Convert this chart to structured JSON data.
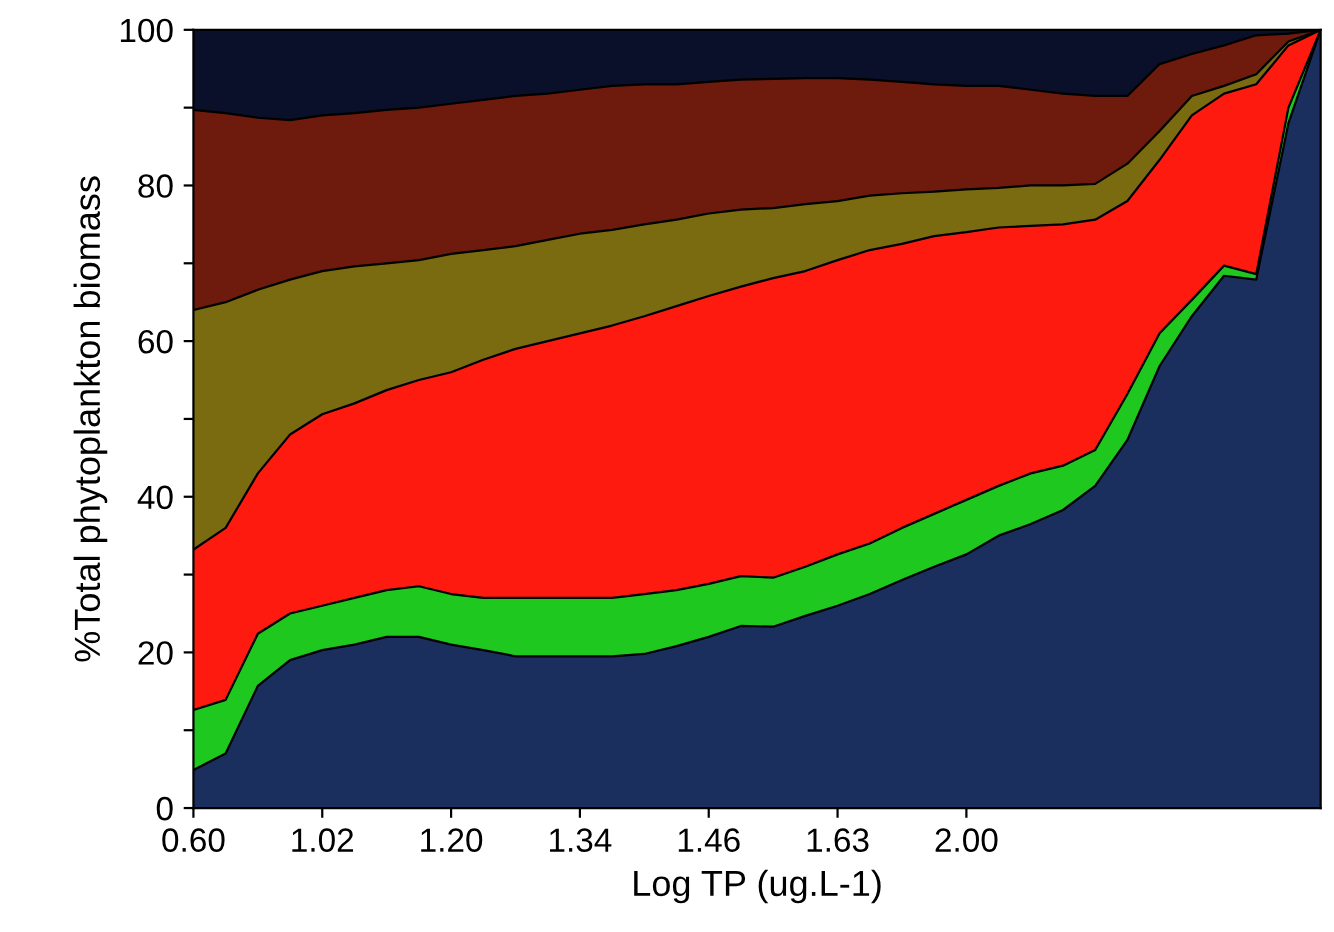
{
  "chart_data": {
    "type": "area",
    "stacked": true,
    "xlabel": "Log TP (ug.L-1)",
    "ylabel": "%Total phytoplankton biomass",
    "categories": [
      "0.60",
      null,
      null,
      null,
      "1.02",
      null,
      null,
      null,
      "1.20",
      null,
      null,
      null,
      "1.34",
      null,
      null,
      null,
      "1.46",
      null,
      null,
      null,
      "1.63",
      null,
      null,
      null,
      "2.00",
      null,
      null,
      null,
      null,
      null,
      null,
      null,
      null,
      null,
      null,
      null
    ],
    "ylim": [
      0,
      100
    ],
    "yticks": [
      0,
      {
        "value": 10,
        "label": null
      },
      20,
      {
        "value": 30,
        "label": null
      },
      40,
      {
        "value": 50,
        "label": null
      },
      60,
      {
        "value": 70,
        "label": null
      },
      80,
      {
        "value": 90,
        "label": null
      },
      100
    ],
    "grid": false,
    "legend": false,
    "series": [
      {
        "color": "#1a2f5e",
        "values": [
          4.9,
          7,
          15.7,
          19,
          20.3,
          21,
          22,
          22,
          21,
          20.3,
          19.5,
          19.5,
          19.5,
          19.5,
          19.8,
          20.8,
          22,
          23.4,
          23.3,
          24.7,
          26,
          27.5,
          29.3,
          31,
          32.6,
          35,
          36.5,
          38.3,
          41.4,
          47.3,
          56.8,
          63.2,
          68.4,
          67.9,
          88,
          100
        ]
      },
      {
        "color": "#1ec81e",
        "values": [
          7.7,
          6.9,
          6.7,
          6,
          5.7,
          6,
          6,
          6.5,
          6.5,
          6.7,
          7.5,
          7.5,
          7.5,
          7.5,
          7.7,
          7.2,
          6.8,
          6.4,
          6.3,
          6.3,
          6.6,
          6.5,
          6.7,
          6.8,
          7,
          6.4,
          6.5,
          5.7,
          4.6,
          5.9,
          4.2,
          2.1,
          1.3,
          0.7,
          2,
          0
        ]
      },
      {
        "color": "#ff1a10",
        "values": [
          20.6,
          22.1,
          20.6,
          23,
          24.6,
          25,
          25.7,
          26.5,
          28.5,
          30.6,
          32,
          33,
          34,
          35,
          35.7,
          36.5,
          37,
          37.2,
          38.5,
          38,
          37.8,
          37.7,
          36.5,
          35.7,
          34.4,
          33.2,
          31.8,
          31,
          29.6,
          24.8,
          22.3,
          23.7,
          22.1,
          24.4,
          8,
          0
        ]
      },
      {
        "color": "#7a6a10",
        "values": [
          30.8,
          29,
          23.6,
          19.9,
          18.4,
          17.6,
          16.3,
          15.4,
          15.2,
          14.1,
          13.2,
          13,
          12.8,
          12.3,
          11.8,
          11.1,
          10.6,
          9.9,
          9,
          8.6,
          7.6,
          7,
          6.5,
          5.7,
          5.5,
          5.1,
          5.2,
          5,
          4.6,
          4.8,
          3.7,
          2.5,
          1,
          1.3,
          0.5,
          0
        ]
      },
      {
        "color": "#6e1a0c",
        "values": [
          25.7,
          24.3,
          22.1,
          20.5,
          20,
          19.7,
          19.7,
          19.6,
          19.3,
          19.3,
          19.3,
          18.8,
          18.5,
          18.5,
          18,
          17.4,
          16.9,
          16.7,
          16.6,
          16.2,
          15.8,
          14.9,
          14.3,
          13.8,
          13.3,
          13.1,
          12.3,
          11.8,
          11.3,
          8.7,
          8.6,
          5.4,
          5.2,
          5,
          1,
          0
        ]
      },
      {
        "color": "#0a0f2a",
        "values": [
          10.3,
          10.7,
          11.3,
          11.6,
          11,
          10.7,
          10.3,
          10,
          9.5,
          9,
          8.5,
          8.2,
          7.7,
          7.2,
          7,
          7,
          6.7,
          6.4,
          6.3,
          6.2,
          6.2,
          6.4,
          6.7,
          7,
          7.2,
          7.2,
          7.7,
          8.2,
          8.5,
          8.5,
          4.4,
          3.1,
          2,
          0.7,
          0.5,
          0
        ]
      }
    ]
  }
}
